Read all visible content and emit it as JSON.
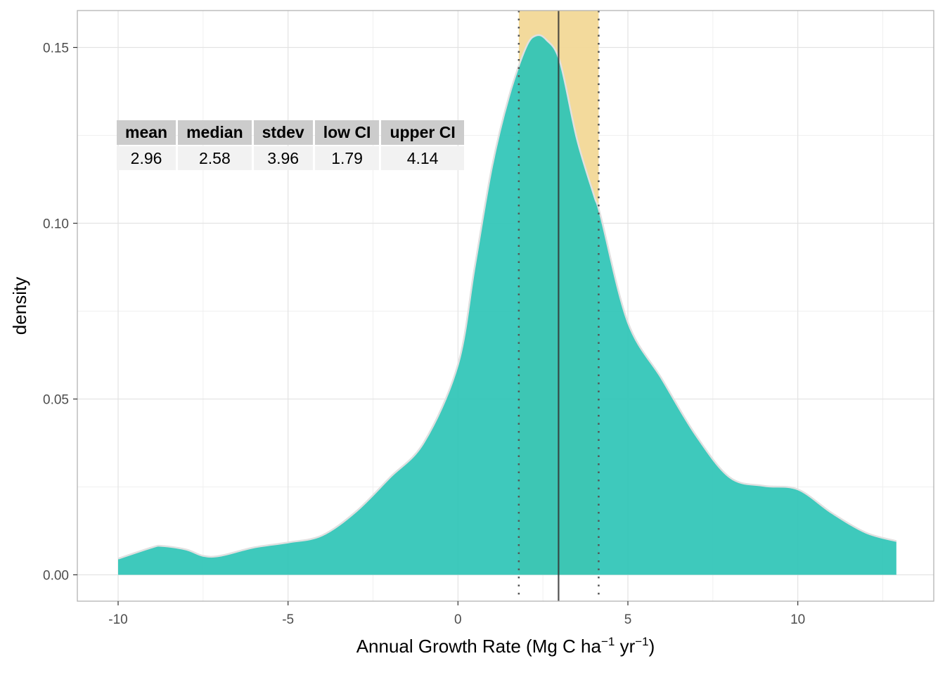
{
  "chart_data": {
    "type": "area",
    "title": "",
    "xlabel": "Annual Growth Rate (Mg C ha",
    "xlabel_sup1": "−1",
    "xlabel_mid": " yr",
    "xlabel_sup2": "−1",
    "xlabel_end": ")",
    "ylabel": "density",
    "xlim": [
      -11.2,
      14.0
    ],
    "ylim": [
      -0.0075,
      0.1605
    ],
    "x_ticks": [
      -10,
      -5,
      0,
      5,
      10
    ],
    "x_tick_labels": [
      "-10",
      "-5",
      "0",
      "5",
      "10"
    ],
    "y_ticks": [
      0,
      0.05,
      0.1,
      0.15
    ],
    "y_tick_labels": [
      "0.00",
      "0.05",
      "0.10",
      "0.15"
    ],
    "grid": true,
    "density": {
      "x": [
        -10,
        -9,
        -8.7,
        -8,
        -7.5,
        -7,
        -6,
        -5,
        -4,
        -3,
        -2,
        -1,
        0,
        0.5,
        1,
        1.5,
        2,
        2.3,
        2.6,
        3,
        3.5,
        4,
        4.2,
        5,
        6,
        7,
        8,
        9,
        10,
        11,
        12,
        12.9
      ],
      "y": [
        0.0046,
        0.0078,
        0.0082,
        0.0072,
        0.0054,
        0.0054,
        0.0078,
        0.0092,
        0.0112,
        0.018,
        0.0277,
        0.0377,
        0.0598,
        0.088,
        0.116,
        0.136,
        0.15,
        0.1534,
        0.1522,
        0.146,
        0.124,
        0.108,
        0.102,
        0.0718,
        0.0557,
        0.0397,
        0.0277,
        0.0253,
        0.0243,
        0.0176,
        0.012,
        0.0096
      ]
    },
    "mean_line": 2.96,
    "ci_band": [
      1.79,
      4.14
    ],
    "colors": {
      "fill": "#2ec4b6",
      "outline": "#e0e0e0",
      "band": "#f2d897",
      "mean": "#333333",
      "ci": "#555555"
    }
  },
  "stats_table": {
    "headers": [
      "mean",
      "median",
      "stdev",
      "low CI",
      "upper CI"
    ],
    "values": [
      "2.96",
      "2.58",
      "3.96",
      "1.79",
      "4.14"
    ]
  }
}
